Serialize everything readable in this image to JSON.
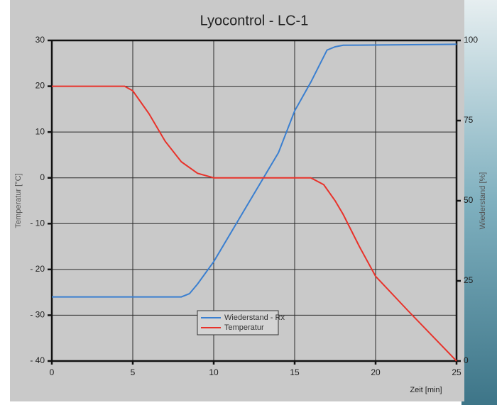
{
  "chart_data": {
    "type": "line",
    "title": "Lyocontrol - LC-1",
    "x_label": "Zeit [min]",
    "y_label": "Temperatur [°C]",
    "y2_label": "Wiederstand [%]",
    "xlim": [
      0,
      25
    ],
    "xticks": [
      0,
      5,
      10,
      15,
      20,
      25
    ],
    "ylim": [
      -40,
      30
    ],
    "yticks": [
      {
        "value": -40,
        "label": "- 40"
      },
      {
        "value": -30,
        "label": "- 30"
      },
      {
        "value": -20,
        "label": "- 20"
      },
      {
        "value": -10,
        "label": "- 10"
      },
      0,
      10,
      20,
      30
    ],
    "y2lim": [
      0,
      100
    ],
    "y2ticks": [
      0,
      25,
      50,
      75,
      100
    ],
    "grid": true,
    "legend": "bottom",
    "series": [
      {
        "name": "Wiederstand - Rx",
        "color": "#3a7fd0",
        "axis": "y2",
        "x": [
          0,
          8,
          8.5,
          9,
          10,
          12,
          14,
          15,
          16,
          16.5,
          17,
          17.5,
          18,
          25
        ],
        "values": [
          20,
          20,
          21,
          24,
          31,
          48,
          65,
          78,
          87,
          92,
          97,
          98,
          98.5,
          98.8
        ]
      },
      {
        "name": "Temperatur",
        "color": "#e8322a",
        "x": [
          0,
          4.5,
          5,
          6,
          7,
          8,
          9,
          10,
          16,
          16.8,
          17.5,
          18,
          19,
          20,
          22,
          25
        ],
        "values": [
          20,
          20,
          19,
          14,
          8,
          3.5,
          1,
          0,
          0,
          -1.5,
          -5,
          -8,
          -15,
          -21.5,
          -29,
          -40
        ]
      }
    ]
  }
}
